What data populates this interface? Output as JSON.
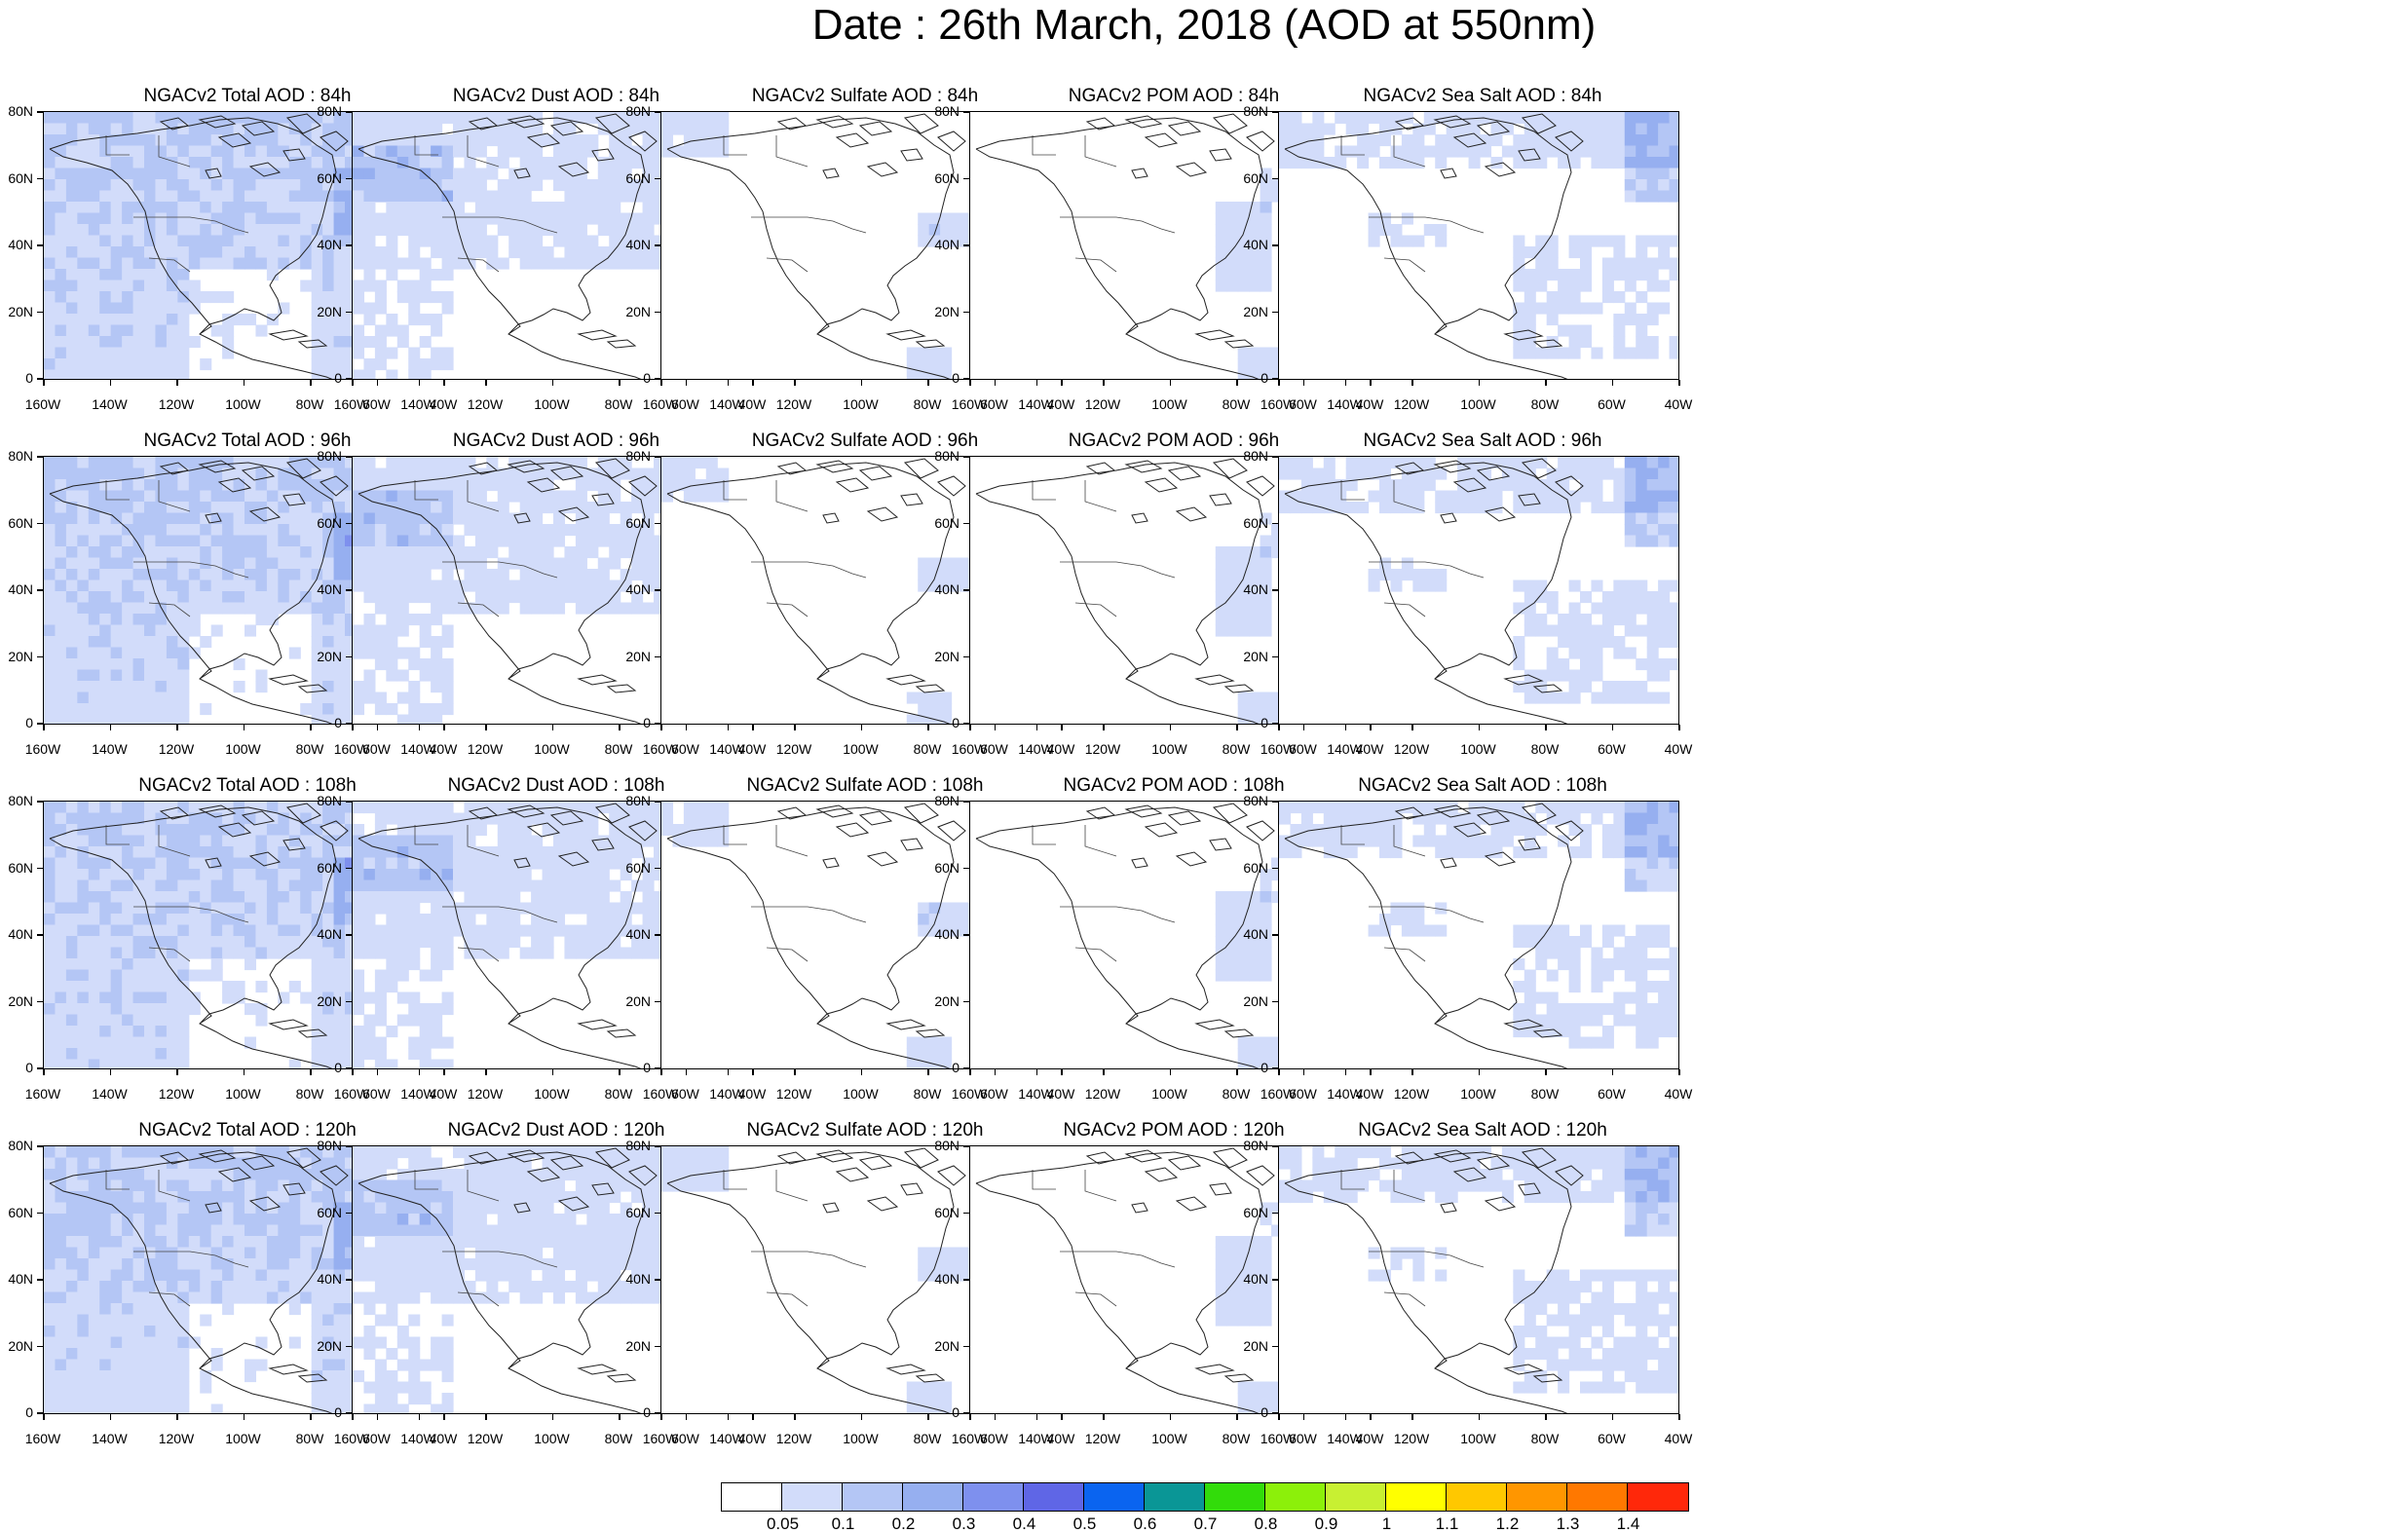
{
  "title": "Date : 26th March, 2018 (AOD at 550nm)",
  "panels": [
    [
      "NGACv2 Total AOD : 84h",
      "NGACv2 Dust AOD : 84h",
      "NGACv2 Sulfate AOD : 84h",
      "NGACv2 POM AOD : 84h",
      "NGACv2 Sea Salt AOD : 84h"
    ],
    [
      "NGACv2 Total AOD : 96h",
      "NGACv2 Dust AOD : 96h",
      "NGACv2 Sulfate AOD : 96h",
      "NGACv2 POM AOD : 96h",
      "NGACv2 Sea Salt AOD : 96h"
    ],
    [
      "NGACv2 Total AOD : 108h",
      "NGACv2 Dust AOD : 108h",
      "NGACv2 Sulfate AOD : 108h",
      "NGACv2 POM AOD : 108h",
      "NGACv2 Sea Salt AOD : 108h"
    ],
    [
      "NGACv2 Total AOD : 120h",
      "NGACv2 Dust AOD : 120h",
      "NGACv2 Sulfate AOD : 120h",
      "NGACv2 POM AOD : 120h",
      "NGACv2 Sea Salt  AOD : 120h"
    ]
  ],
  "lat_labels": [
    "80N",
    "60N",
    "40N",
    "20N",
    "0"
  ],
  "lon_labels": [
    "160W",
    "140W",
    "120W",
    "100W",
    "80W",
    "60W",
    "40W"
  ],
  "colorbar": {
    "colors": [
      "#ffffff",
      "#d2dcfa",
      "#b4c6f5",
      "#96aff0",
      "#7e90ee",
      "#5f66e6",
      "#0a64f0",
      "#0a9696",
      "#32dc0a",
      "#8cf00a",
      "#c8f032",
      "#ffff00",
      "#ffc800",
      "#ff9600",
      "#ff7800",
      "#ff280a"
    ],
    "labels": [
      "0.05",
      "0.1",
      "0.2",
      "0.3",
      "0.4",
      "0.5",
      "0.6",
      "0.7",
      "0.8",
      "0.9",
      "1",
      "1.1",
      "1.2",
      "1.3",
      "1.4"
    ]
  }
}
